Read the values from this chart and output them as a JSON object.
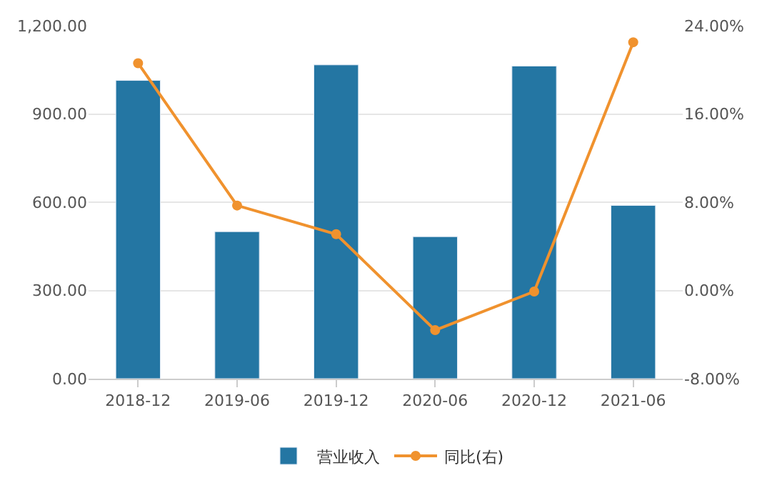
{
  "chart_data": {
    "type": "bar",
    "categories": [
      "2018-12",
      "2019-06",
      "2019-12",
      "2020-06",
      "2020-12",
      "2021-06"
    ],
    "series": [
      {
        "name": "营业收入",
        "color": "#2476a3",
        "values": [
          1014,
          500,
          1067,
          483,
          1063,
          589
        ]
      },
      {
        "name": "同比(右)",
        "type": "line",
        "axis": "y2",
        "color": "#f0922e",
        "values": [
          20.6,
          7.7,
          5.1,
          -3.6,
          -0.1,
          22.5
        ]
      }
    ],
    "ylim": [
      0,
      1200
    ],
    "yticks": [
      {
        "value": 0,
        "label": "0.00"
      },
      {
        "value": 300,
        "label": "300.00"
      },
      {
        "value": 600,
        "label": "600.00"
      },
      {
        "value": 900,
        "label": "900.00"
      },
      {
        "value": 1200,
        "label": "1,200.00"
      }
    ],
    "y2lim": [
      -8,
      24
    ],
    "y2ticks": [
      {
        "value": -8,
        "label": "-8.00%"
      },
      {
        "value": 0,
        "label": "0.00%"
      },
      {
        "value": 8,
        "label": "8.00%"
      },
      {
        "value": 16,
        "label": "16.00%"
      },
      {
        "value": 24,
        "label": "24.00%"
      }
    ],
    "grid": "y",
    "legend": "bottom",
    "marker": "circle",
    "line_style": "solid"
  }
}
